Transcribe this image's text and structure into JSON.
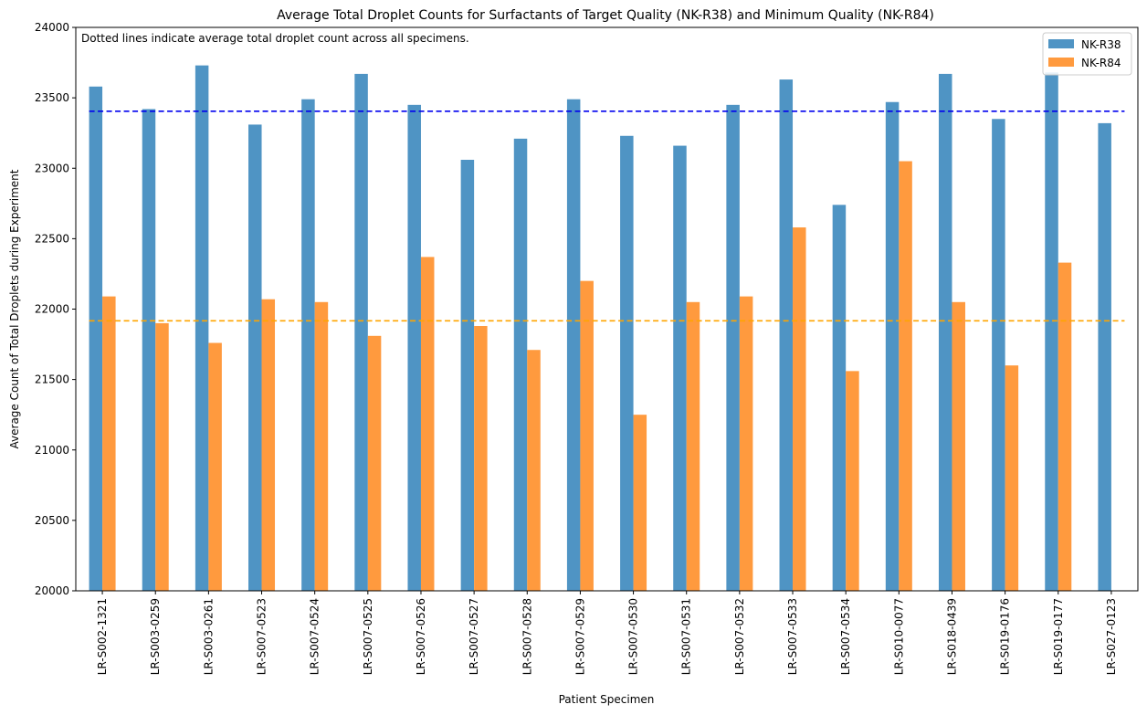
{
  "chart_data": {
    "type": "bar",
    "title": "Average Total Droplet Counts for Surfactants of Target Quality (NK-R38) and Minimum Quality (NK-R84)",
    "xlabel": "Patient Specimen",
    "ylabel": "Average Count of Total Droplets during Experiment",
    "ylim": [
      20000,
      24000
    ],
    "yticks": [
      20000,
      20500,
      21000,
      21500,
      22000,
      22500,
      23000,
      23500,
      24000
    ],
    "annotation": "Dotted lines indicate average total droplet count across all specimens.",
    "legend_position": "top-right",
    "categories": [
      "LR-S002-1321",
      "LR-S003-0259",
      "LR-S003-0261",
      "LR-S007-0523",
      "LR-S007-0524",
      "LR-S007-0525",
      "LR-S007-0526",
      "LR-S007-0527",
      "LR-S007-0528",
      "LR-S007-0529",
      "LR-S007-0530",
      "LR-S007-0531",
      "LR-S007-0532",
      "LR-S007-0533",
      "LR-S007-0534",
      "LR-S010-0077",
      "LR-S018-0439",
      "LR-S019-0176",
      "LR-S019-0177",
      "LR-S027-0123"
    ],
    "series": [
      {
        "name": "NK-R38",
        "color": "#4f94c4",
        "values": [
          23580,
          23420,
          23730,
          23310,
          23490,
          23670,
          23450,
          23060,
          23210,
          23490,
          23230,
          23160,
          23450,
          23630,
          22740,
          23470,
          23670,
          23350,
          23680,
          23320
        ]
      },
      {
        "name": "NK-R84",
        "color": "#ff9a3e",
        "values": [
          22090,
          21900,
          21760,
          22070,
          22050,
          21810,
          22370,
          21880,
          21710,
          22200,
          21250,
          22050,
          22090,
          22580,
          21560,
          23050,
          22050,
          21600,
          22330,
          null
        ]
      }
    ],
    "reference_lines": [
      {
        "series": "NK-R38",
        "value": 23405,
        "color": "#0000ee",
        "style": "dashed"
      },
      {
        "series": "NK-R84",
        "value": 21917,
        "color": "#ffa500",
        "style": "dashed"
      }
    ]
  }
}
